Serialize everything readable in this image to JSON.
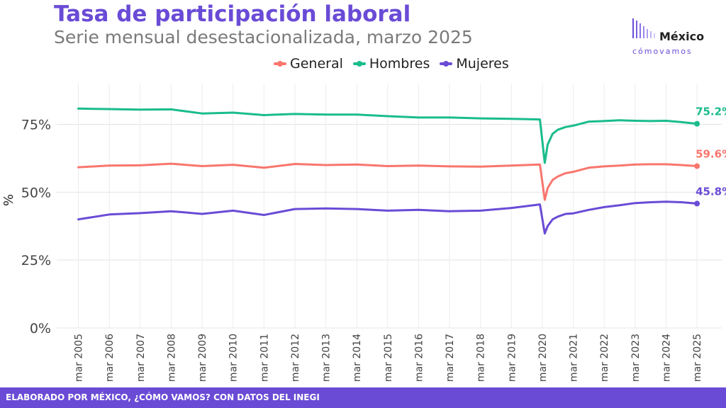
{
  "header": {
    "title": "Tasa de participación laboral",
    "subtitle": "Serie mensual desestacionalizada, marzo 2025"
  },
  "logo": {
    "top": "México",
    "bottom": "cómovamos"
  },
  "footer": {
    "text": "ELABORADO POR MÉXICO, ¿CÓMO VAMOS? CON DATOS DEL INEGI"
  },
  "colors": {
    "accent": "#6a4bd6",
    "general": "#f8766d",
    "hombres": "#1abc8c",
    "mujeres": "#6a4bd6"
  },
  "chart_data": {
    "type": "line",
    "title": "Tasa de participación laboral",
    "subtitle": "Serie mensual desestacionalizada, marzo 2025",
    "xlabel": "",
    "ylabel": "%",
    "ylim": [
      0,
      90
    ],
    "yticks": [
      0,
      25,
      50,
      75
    ],
    "ytick_labels": [
      "0%",
      "25%",
      "50%",
      "75%"
    ],
    "xticks": [
      2005,
      2006,
      2007,
      2008,
      2009,
      2010,
      2011,
      2012,
      2013,
      2014,
      2015,
      2016,
      2017,
      2018,
      2019,
      2020,
      2021,
      2022,
      2023,
      2024,
      2025
    ],
    "xtick_labels": [
      "mar 2005",
      "mar 2006",
      "mar 2007",
      "mar 2008",
      "mar 2009",
      "mar 2010",
      "mar 2011",
      "mar 2012",
      "mar 2013",
      "mar 2014",
      "mar 2015",
      "mar 2016",
      "mar 2017",
      "mar 2018",
      "mar 2019",
      "mar 2020",
      "mar 2021",
      "mar 2022",
      "mar 2023",
      "mar 2024",
      "mar 2025"
    ],
    "grid": true,
    "legend_position": "top",
    "x": [
      2005.0,
      2006.0,
      2007.0,
      2008.0,
      2009.0,
      2010.0,
      2011.0,
      2012.0,
      2013.0,
      2014.0,
      2015.0,
      2016.0,
      2017.0,
      2018.0,
      2019.0,
      2019.92,
      2020.08,
      2020.17,
      2020.33,
      2020.5,
      2020.75,
      2021.0,
      2021.5,
      2022.0,
      2022.5,
      2023.0,
      2023.5,
      2024.0,
      2024.5,
      2025.0
    ],
    "series": [
      {
        "name": "General",
        "color": "#f8766d",
        "values": [
          59.2,
          59.8,
          59.9,
          60.5,
          59.6,
          60.1,
          59.0,
          60.4,
          60.0,
          60.2,
          59.6,
          59.8,
          59.5,
          59.4,
          59.8,
          60.2,
          47.2,
          51.5,
          54.5,
          55.8,
          57.0,
          57.5,
          59.0,
          59.5,
          59.8,
          60.2,
          60.3,
          60.3,
          60.0,
          59.6
        ]
      },
      {
        "name": "Hombres",
        "color": "#1abc8c",
        "values": [
          80.8,
          80.6,
          80.4,
          80.5,
          79.0,
          79.3,
          78.4,
          78.8,
          78.6,
          78.6,
          78.0,
          77.5,
          77.5,
          77.2,
          77.0,
          76.8,
          60.8,
          67.5,
          71.5,
          73.0,
          74.0,
          74.5,
          76.0,
          76.2,
          76.5,
          76.3,
          76.2,
          76.3,
          75.8,
          75.2
        ]
      },
      {
        "name": "Mujeres",
        "color": "#6a4bd6",
        "values": [
          40.0,
          41.8,
          42.3,
          43.0,
          42.0,
          43.2,
          41.6,
          43.8,
          44.0,
          43.8,
          43.2,
          43.5,
          43.0,
          43.2,
          44.2,
          45.5,
          34.8,
          37.5,
          40.0,
          41.0,
          42.0,
          42.2,
          43.5,
          44.5,
          45.2,
          46.0,
          46.3,
          46.5,
          46.3,
          45.8
        ]
      }
    ],
    "end_labels": [
      {
        "series": "Hombres",
        "text": "75.2%"
      },
      {
        "series": "General",
        "text": "59.6%"
      },
      {
        "series": "Mujeres",
        "text": "45.8%"
      }
    ]
  }
}
